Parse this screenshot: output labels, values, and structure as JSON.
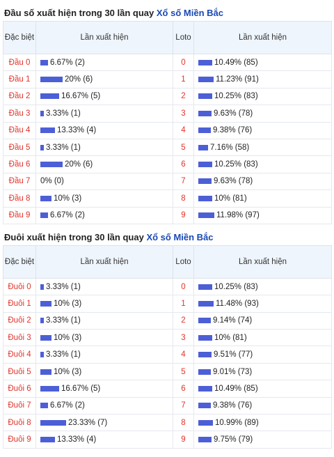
{
  "sections": [
    {
      "title_prefix": "Đầu số xuất hiện trong 30 lần quay",
      "title_link": "Xổ số Miền Bắc",
      "headers": {
        "col1": "Đặc biệt",
        "col2": "Lần xuất hiện",
        "col3": "Loto",
        "col4": "Lần xuất hiện"
      },
      "rows": [
        {
          "label": "Đầu 0",
          "special": "6.67% (2)",
          "special_pct": 6.67,
          "loto": "0",
          "loto_val": "10.49% (85)",
          "loto_pct": 10.49
        },
        {
          "label": "Đầu 1",
          "special": "20% (6)",
          "special_pct": 20,
          "loto": "1",
          "loto_val": "11.23% (91)",
          "loto_pct": 11.23
        },
        {
          "label": "Đầu 2",
          "special": "16.67% (5)",
          "special_pct": 16.67,
          "loto": "2",
          "loto_val": "10.25% (83)",
          "loto_pct": 10.25
        },
        {
          "label": "Đầu 3",
          "special": "3.33% (1)",
          "special_pct": 3.33,
          "loto": "3",
          "loto_val": "9.63% (78)",
          "loto_pct": 9.63
        },
        {
          "label": "Đầu 4",
          "special": "13.33% (4)",
          "special_pct": 13.33,
          "loto": "4",
          "loto_val": "9.38% (76)",
          "loto_pct": 9.38
        },
        {
          "label": "Đầu 5",
          "special": "3.33% (1)",
          "special_pct": 3.33,
          "loto": "5",
          "loto_val": "7.16% (58)",
          "loto_pct": 7.16
        },
        {
          "label": "Đầu 6",
          "special": "20% (6)",
          "special_pct": 20,
          "loto": "6",
          "loto_val": "10.25% (83)",
          "loto_pct": 10.25
        },
        {
          "label": "Đầu 7",
          "special": "0% (0)",
          "special_pct": 0,
          "loto": "7",
          "loto_val": "9.63% (78)",
          "loto_pct": 9.63
        },
        {
          "label": "Đầu 8",
          "special": "10% (3)",
          "special_pct": 10,
          "loto": "8",
          "loto_val": "10% (81)",
          "loto_pct": 10
        },
        {
          "label": "Đầu 9",
          "special": "6.67% (2)",
          "special_pct": 6.67,
          "loto": "9",
          "loto_val": "11.98% (97)",
          "loto_pct": 11.98
        }
      ]
    },
    {
      "title_prefix": "Đuôi xuất hiện trong 30 lần quay",
      "title_link": "Xổ số Miền Bắc",
      "headers": {
        "col1": "Đặc biệt",
        "col2": "Lần xuất hiện",
        "col3": "Loto",
        "col4": "Lần xuất hiện"
      },
      "rows": [
        {
          "label": "Đuôi 0",
          "special": "3.33% (1)",
          "special_pct": 3.33,
          "loto": "0",
          "loto_val": "10.25% (83)",
          "loto_pct": 10.25
        },
        {
          "label": "Đuôi 1",
          "special": "10% (3)",
          "special_pct": 10,
          "loto": "1",
          "loto_val": "11.48% (93)",
          "loto_pct": 11.48
        },
        {
          "label": "Đuôi 2",
          "special": "3.33% (1)",
          "special_pct": 3.33,
          "loto": "2",
          "loto_val": "9.14% (74)",
          "loto_pct": 9.14
        },
        {
          "label": "Đuôi 3",
          "special": "10% (3)",
          "special_pct": 10,
          "loto": "3",
          "loto_val": "10% (81)",
          "loto_pct": 10
        },
        {
          "label": "Đuôi 4",
          "special": "3.33% (1)",
          "special_pct": 3.33,
          "loto": "4",
          "loto_val": "9.51% (77)",
          "loto_pct": 9.51
        },
        {
          "label": "Đuôi 5",
          "special": "10% (3)",
          "special_pct": 10,
          "loto": "5",
          "loto_val": "9.01% (73)",
          "loto_pct": 9.01
        },
        {
          "label": "Đuôi 6",
          "special": "16.67% (5)",
          "special_pct": 16.67,
          "loto": "6",
          "loto_val": "10.49% (85)",
          "loto_pct": 10.49
        },
        {
          "label": "Đuôi 7",
          "special": "6.67% (2)",
          "special_pct": 6.67,
          "loto": "7",
          "loto_val": "9.38% (76)",
          "loto_pct": 9.38
        },
        {
          "label": "Đuôi 8",
          "special": "23.33% (7)",
          "special_pct": 23.33,
          "loto": "8",
          "loto_val": "10.99% (89)",
          "loto_pct": 10.99
        },
        {
          "label": "Đuôi 9",
          "special": "13.33% (4)",
          "special_pct": 13.33,
          "loto": "9",
          "loto_val": "9.75% (79)",
          "loto_pct": 9.75
        }
      ]
    }
  ],
  "colors": {
    "bar": "#4d5fd6",
    "label": "#e0332b",
    "link": "#1a49b3",
    "header_bg": "#eef5fc"
  }
}
